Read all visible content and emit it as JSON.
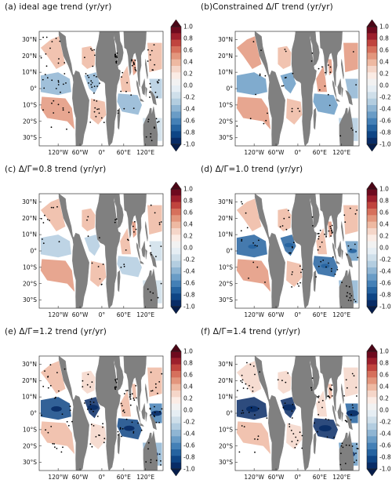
{
  "colorbar": {
    "labels": [
      "1.0",
      "0.8",
      "0.6",
      "0.4",
      "0.2",
      "0.0",
      "-0.2",
      "-0.4",
      "-0.6",
      "-0.8",
      "-1.0"
    ],
    "colors_high_to_low": [
      "#6e0a1e",
      "#9c1f2c",
      "#c0443e",
      "#d6705c",
      "#e3967d",
      "#eeb9a2",
      "#f5d6c9",
      "#fbece5",
      "#f2f2f2",
      "#e6eef4",
      "#cfdfea",
      "#b3cde0",
      "#8fb5d3",
      "#6a9cc6",
      "#4480b6",
      "#2563a0",
      "#0e4585",
      "#082c66"
    ]
  },
  "axes": {
    "lat_labels": [
      "30°N",
      "20°N",
      "10°N",
      "0°",
      "10°S",
      "20°S",
      "30°S"
    ],
    "lon_labels": [
      "120°W",
      "60°W",
      "0°",
      "60°E",
      "120°E"
    ]
  },
  "panels": [
    {
      "title": "(a)  ideal age trend (yr/yr)",
      "intensity": 0.35,
      "stipple": 130,
      "seed": 11
    },
    {
      "title": "(b)Constrained Δ/Γ trend (yr/yr)",
      "intensity": 0.5,
      "stipple": 40,
      "seed": 23
    },
    {
      "title": "(c)  Δ/Γ=0.8 trend (yr/yr)",
      "intensity": 0.3,
      "stipple": 50,
      "seed": 37
    },
    {
      "title": "(d)  Δ/Γ=1.0 trend (yr/yr)",
      "intensity": 0.7,
      "stipple": 90,
      "seed": 41
    },
    {
      "title": "(e)  Δ/Γ=1.2 trend (yr/yr)",
      "intensity": 0.85,
      "stipple": 120,
      "seed": 53
    },
    {
      "title": "(f)  Δ/Γ=1.4 trend (yr/yr)",
      "intensity": 1.0,
      "stipple": 110,
      "seed": 67
    }
  ]
}
